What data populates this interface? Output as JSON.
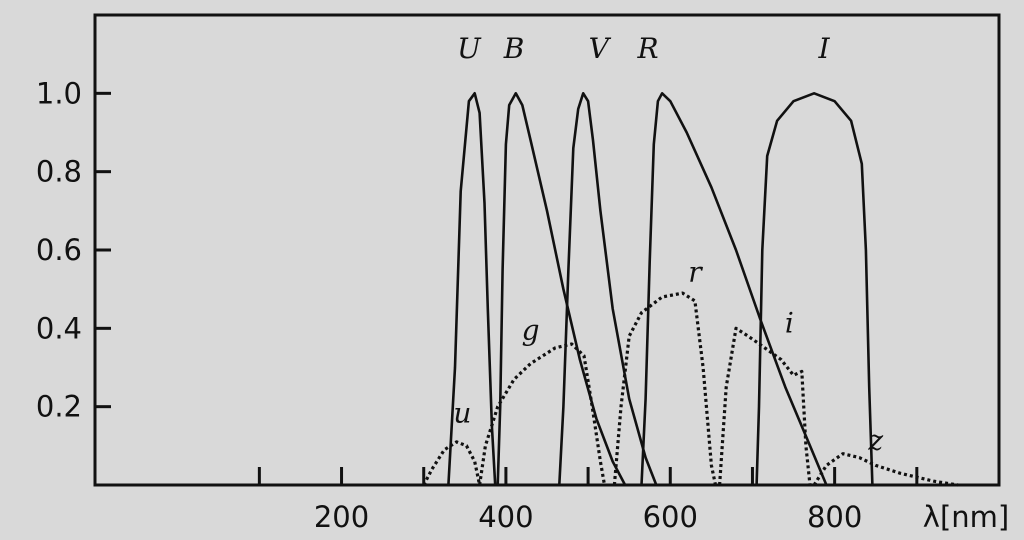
{
  "chart_data": {
    "type": "line",
    "title": "",
    "xlabel": "λ[nm]",
    "ylabel": "",
    "xlim": [
      -100,
      1000
    ],
    "ylim": [
      0,
      1.2
    ],
    "grid": false,
    "x_tick_labels": [
      "200",
      "400",
      "600",
      "800"
    ],
    "x_ticks_major": [
      200,
      400,
      600,
      800
    ],
    "x_ticks_minor": [
      100,
      300,
      500,
      700,
      900
    ],
    "y_ticks": [
      0.2,
      0.4,
      0.6,
      0.8,
      1.0
    ],
    "y_tick_labels": [
      "0.2",
      "0.4",
      "0.6",
      "0.8",
      "1.0"
    ],
    "series": [
      {
        "name": "U",
        "style": "solid",
        "label_at": [
          355,
          1.09
        ],
        "points": [
          [
            330,
            0
          ],
          [
            338,
            0.3
          ],
          [
            345,
            0.75
          ],
          [
            355,
            0.98
          ],
          [
            362,
            1.0
          ],
          [
            368,
            0.95
          ],
          [
            374,
            0.72
          ],
          [
            378,
            0.45
          ],
          [
            383,
            0.15
          ],
          [
            387,
            0
          ]
        ]
      },
      {
        "name": "B",
        "style": "solid",
        "label_at": [
          410,
          1.09
        ],
        "points": [
          [
            390,
            0
          ],
          [
            393,
            0.2
          ],
          [
            396,
            0.55
          ],
          [
            400,
            0.87
          ],
          [
            404,
            0.97
          ],
          [
            412,
            1.0
          ],
          [
            420,
            0.97
          ],
          [
            430,
            0.88
          ],
          [
            450,
            0.7
          ],
          [
            470,
            0.5
          ],
          [
            490,
            0.32
          ],
          [
            510,
            0.17
          ],
          [
            530,
            0.06
          ],
          [
            545,
            0
          ]
        ]
      },
      {
        "name": "V",
        "style": "solid",
        "label_at": [
          513,
          1.09
        ],
        "points": [
          [
            465,
            0
          ],
          [
            470,
            0.2
          ],
          [
            476,
            0.55
          ],
          [
            482,
            0.86
          ],
          [
            488,
            0.96
          ],
          [
            494,
            1.0
          ],
          [
            500,
            0.98
          ],
          [
            506,
            0.88
          ],
          [
            515,
            0.7
          ],
          [
            530,
            0.45
          ],
          [
            550,
            0.22
          ],
          [
            570,
            0.07
          ],
          [
            583,
            0
          ]
        ]
      },
      {
        "name": "R",
        "style": "solid",
        "label_at": [
          573,
          1.09
        ],
        "points": [
          [
            565,
            0
          ],
          [
            570,
            0.22
          ],
          [
            575,
            0.57
          ],
          [
            580,
            0.87
          ],
          [
            585,
            0.98
          ],
          [
            590,
            1.0
          ],
          [
            600,
            0.98
          ],
          [
            620,
            0.9
          ],
          [
            650,
            0.76
          ],
          [
            680,
            0.6
          ],
          [
            710,
            0.42
          ],
          [
            740,
            0.25
          ],
          [
            770,
            0.1
          ],
          [
            790,
            0
          ]
        ]
      },
      {
        "name": "I",
        "style": "solid",
        "label_at": [
          787,
          1.09
        ],
        "points": [
          [
            705,
            0
          ],
          [
            708,
            0.2
          ],
          [
            712,
            0.6
          ],
          [
            718,
            0.84
          ],
          [
            730,
            0.93
          ],
          [
            750,
            0.98
          ],
          [
            775,
            1.0
          ],
          [
            800,
            0.98
          ],
          [
            820,
            0.93
          ],
          [
            833,
            0.82
          ],
          [
            838,
            0.6
          ],
          [
            842,
            0.25
          ],
          [
            846,
            0
          ]
        ]
      },
      {
        "name": "u",
        "style": "dotted",
        "label_at": [
          347,
          0.16
        ],
        "points": [
          [
            300,
            0
          ],
          [
            310,
            0.04
          ],
          [
            325,
            0.09
          ],
          [
            340,
            0.11
          ],
          [
            352,
            0.1
          ],
          [
            362,
            0.06
          ],
          [
            368,
            0
          ]
        ]
      },
      {
        "name": "g",
        "style": "dotted",
        "label_at": [
          430,
          0.37
        ],
        "points": [
          [
            368,
            0
          ],
          [
            375,
            0.1
          ],
          [
            390,
            0.2
          ],
          [
            410,
            0.27
          ],
          [
            430,
            0.31
          ],
          [
            460,
            0.35
          ],
          [
            480,
            0.36
          ],
          [
            495,
            0.33
          ],
          [
            505,
            0.2
          ],
          [
            515,
            0.06
          ],
          [
            520,
            0
          ]
        ]
      },
      {
        "name": "r",
        "style": "dotted",
        "label_at": [
          630,
          0.52
        ],
        "points": [
          [
            532,
            0
          ],
          [
            540,
            0.2
          ],
          [
            550,
            0.38
          ],
          [
            565,
            0.44
          ],
          [
            590,
            0.48
          ],
          [
            615,
            0.49
          ],
          [
            630,
            0.47
          ],
          [
            640,
            0.3
          ],
          [
            650,
            0.05
          ],
          [
            655,
            0
          ]
        ]
      },
      {
        "name": "i",
        "style": "dotted",
        "label_at": [
          745,
          0.39
        ],
        "points": [
          [
            660,
            0
          ],
          [
            668,
            0.25
          ],
          [
            680,
            0.4
          ],
          [
            695,
            0.38
          ],
          [
            715,
            0.35
          ],
          [
            735,
            0.32
          ],
          [
            750,
            0.28
          ],
          [
            760,
            0.29
          ],
          [
            765,
            0.1
          ],
          [
            770,
            0
          ]
        ]
      },
      {
        "name": "z",
        "style": "dotted",
        "label_at": [
          850,
          0.09
        ],
        "points": [
          [
            775,
            0
          ],
          [
            790,
            0.05
          ],
          [
            810,
            0.08
          ],
          [
            830,
            0.07
          ],
          [
            850,
            0.05
          ],
          [
            880,
            0.03
          ],
          [
            920,
            0.01
          ],
          [
            950,
            0
          ]
        ]
      }
    ]
  }
}
